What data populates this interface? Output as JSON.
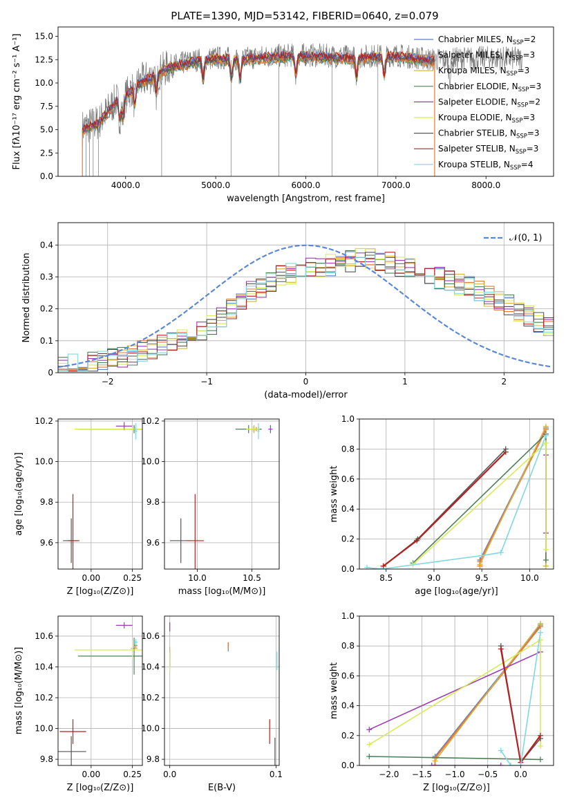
{
  "title": "PLATE=1390, MJD=53142, FIBERID=0640, z=0.079",
  "colors": {
    "cm": "#5b7fc8",
    "sm": "#e07a3c",
    "km": "#d4b040",
    "ce": "#4f7f5a",
    "se": "#9b3db0",
    "ke": "#d8ea58",
    "cs": "#555555",
    "ss": "#b22222",
    "ks": "#80d8e0",
    "gauss": "#5b88d6",
    "data": "#777777"
  },
  "models": [
    {
      "key": "cm",
      "label": "Chabrier MILES, N",
      "sub": "SSP",
      "n": "=2"
    },
    {
      "key": "sm",
      "label": "Salpeter MILES, N",
      "sub": "SSP",
      "n": "=3"
    },
    {
      "key": "km",
      "label": "Kroupa MILES, N",
      "sub": "SSP",
      "n": "=3"
    },
    {
      "key": "ce",
      "label": "Chabrier ELODIE, N",
      "sub": "SSP",
      "n": "=3"
    },
    {
      "key": "se",
      "label": "Salpeter ELODIE, N",
      "sub": "SSP",
      "n": "=2"
    },
    {
      "key": "ke",
      "label": "Kroupa ELODIE, N",
      "sub": "SSP",
      "n": "=3"
    },
    {
      "key": "cs",
      "label": "Chabrier STELIB, N",
      "sub": "SSP",
      "n": "=3"
    },
    {
      "key": "ss",
      "label": "Salpeter STELIB, N",
      "sub": "SSP",
      "n": "=3"
    },
    {
      "key": "ks",
      "label": "Kroupa STELIB, N",
      "sub": "SSP",
      "n": "=4"
    }
  ],
  "chart_data": [
    {
      "id": "spectrum",
      "type": "line",
      "xlabel": "wavelength [Angstrom, rest frame]",
      "ylabel": "Flux [fλ10⁻¹⁷ erg cm⁻² s⁻¹ A⁻¹]",
      "xlim": [
        3250,
        8750
      ],
      "ylim": [
        0,
        16
      ],
      "xticks": [
        4000,
        5000,
        6000,
        7000,
        8000
      ],
      "yticks": [
        0.0,
        2.5,
        5.0,
        7.5,
        10.0,
        12.5,
        15.0
      ],
      "continuum": [
        [
          3520,
          5.0
        ],
        [
          3700,
          5.6
        ],
        [
          3900,
          8.0
        ],
        [
          4000,
          8.4
        ],
        [
          4100,
          9.6
        ],
        [
          4300,
          10.6
        ],
        [
          4500,
          11.6
        ],
        [
          4800,
          12.3
        ],
        [
          5000,
          12.5
        ],
        [
          5300,
          12.4
        ],
        [
          5600,
          12.7
        ],
        [
          6000,
          12.8
        ],
        [
          6500,
          12.6
        ],
        [
          7000,
          12.8
        ],
        [
          7400,
          12.3
        ],
        [
          8000,
          12.5
        ],
        [
          8400,
          12.4
        ]
      ]
    },
    {
      "id": "residuals",
      "type": "line",
      "xlabel": "(data-model)/error",
      "ylabel": "Normed distribution",
      "xlim": [
        -2.5,
        2.5
      ],
      "ylim": [
        0,
        0.47
      ],
      "xticks": [
        -2,
        -1,
        0,
        1,
        2
      ],
      "yticks": [
        0.0,
        0.1,
        0.2,
        0.3,
        0.4
      ],
      "legend": "𝒩(0, 1)",
      "envelope": [
        [
          -2.5,
          0.02
        ],
        [
          -2.0,
          0.04
        ],
        [
          -1.5,
          0.08
        ],
        [
          -1.0,
          0.14
        ],
        [
          -0.6,
          0.25
        ],
        [
          -0.3,
          0.3
        ],
        [
          0.0,
          0.33
        ],
        [
          0.3,
          0.34
        ],
        [
          0.6,
          0.36
        ],
        [
          1.0,
          0.33
        ],
        [
          1.3,
          0.3
        ],
        [
          1.6,
          0.27
        ],
        [
          2.0,
          0.22
        ],
        [
          2.3,
          0.16
        ],
        [
          2.5,
          0.13
        ]
      ]
    },
    {
      "id": "age_vs_z",
      "type": "scatter",
      "xlabel": "Z [log₁₀(Z/Z⊙)]",
      "ylabel": "age  [log₁₀(age/yr)]",
      "xlim": [
        -0.2,
        0.31
      ],
      "ylim": [
        9.47,
        10.21
      ],
      "xticks": [
        0.0,
        0.25
      ],
      "yticks": [
        9.6,
        9.8,
        10.0,
        10.2
      ],
      "points": [
        {
          "s": "cm",
          "x": 0.27,
          "y": 10.16,
          "ex": 0.01,
          "ey": 0.01
        },
        {
          "s": "sm",
          "x": 0.27,
          "y": 10.16,
          "ex": 0.03,
          "ey": 0.01
        },
        {
          "s": "km",
          "x": 0.26,
          "y": 10.16,
          "ex": 0.02,
          "ey": 0.02
        },
        {
          "s": "ce",
          "x": 0.26,
          "y": 10.16,
          "ex": 0.34,
          "ey": 0.02
        },
        {
          "s": "se",
          "x": 0.2,
          "y": 10.175,
          "ex": 0.05,
          "ey": 0.02
        },
        {
          "s": "ke",
          "x": 0.25,
          "y": 10.16,
          "ex": 0.35,
          "ey": 0.015
        },
        {
          "s": "cs",
          "x": -0.12,
          "y": 9.61,
          "ex": 0.05,
          "ey": 0.11
        },
        {
          "s": "ss",
          "x": -0.11,
          "y": 9.61,
          "ex": 0.03,
          "ey": 0.23
        },
        {
          "s": "ks",
          "x": 0.27,
          "y": 10.15,
          "ex": 0.01,
          "ey": 0.04
        }
      ]
    },
    {
      "id": "age_vs_mass",
      "type": "scatter",
      "xlabel": "mass [log₁₀(M/M⊙)]",
      "ylabel": "",
      "xlim": [
        9.7,
        10.75
      ],
      "ylim": [
        9.47,
        10.21
      ],
      "xticks": [
        10.0,
        10.5
      ],
      "yticks": [
        9.6,
        9.8,
        10.0,
        10.2
      ],
      "points": [
        {
          "s": "cm",
          "x": 10.56,
          "y": 10.16,
          "ex": 0.02,
          "ey": 0.01
        },
        {
          "s": "sm",
          "x": 10.54,
          "y": 10.16,
          "ex": 0.02,
          "ey": 0.01
        },
        {
          "s": "km",
          "x": 10.52,
          "y": 10.16,
          "ex": 0.02,
          "ey": 0.02
        },
        {
          "s": "ce",
          "x": 10.47,
          "y": 10.16,
          "ex": 0.12,
          "ey": 0.02
        },
        {
          "s": "se",
          "x": 10.67,
          "y": 10.16,
          "ex": 0.02,
          "ey": 0.02
        },
        {
          "s": "ke",
          "x": 10.51,
          "y": 10.16,
          "ex": 0.06,
          "ey": 0.015
        },
        {
          "s": "cs",
          "x": 9.85,
          "y": 9.61,
          "ex": 0.1,
          "ey": 0.11
        },
        {
          "s": "ss",
          "x": 9.98,
          "y": 9.61,
          "ex": 0.08,
          "ey": 0.23
        },
        {
          "s": "ks",
          "x": 10.56,
          "y": 10.15,
          "ex": 0.01,
          "ey": 0.04
        }
      ]
    },
    {
      "id": "mass_vs_z",
      "type": "scatter",
      "xlabel": "Z [log₁₀(Z/Z⊙)]",
      "ylabel": "mass [log₁₀(M/M⊙)]",
      "xlim": [
        -0.2,
        0.31
      ],
      "ylim": [
        9.76,
        10.73
      ],
      "xticks": [
        0.0,
        0.25
      ],
      "yticks": [
        9.8,
        10.0,
        10.2,
        10.4,
        10.6
      ],
      "points": [
        {
          "s": "cm",
          "x": 0.27,
          "y": 10.56,
          "ex": 0.01,
          "ey": 0.02
        },
        {
          "s": "sm",
          "x": 0.27,
          "y": 10.54,
          "ex": 0.01,
          "ey": 0.02
        },
        {
          "s": "km",
          "x": 0.26,
          "y": 10.52,
          "ex": 0.02,
          "ey": 0.02
        },
        {
          "s": "ce",
          "x": 0.26,
          "y": 10.47,
          "ex": 0.34,
          "ey": 0.12
        },
        {
          "s": "se",
          "x": 0.2,
          "y": 10.67,
          "ex": 0.05,
          "ey": 0.02
        },
        {
          "s": "ke",
          "x": 0.25,
          "y": 10.51,
          "ex": 0.35,
          "ey": 0.06
        },
        {
          "s": "cs",
          "x": -0.12,
          "y": 9.85,
          "ex": 0.09,
          "ey": 0.1
        },
        {
          "s": "ss",
          "x": -0.11,
          "y": 9.98,
          "ex": 0.08,
          "ey": 0.08
        },
        {
          "s": "ks",
          "x": 0.27,
          "y": 10.56,
          "ex": 0.01,
          "ey": 0.02
        }
      ]
    },
    {
      "id": "mass_vs_ebv",
      "type": "scatter",
      "xlabel": "E(B-V)",
      "ylabel": "",
      "xlim": [
        -0.005,
        0.103
      ],
      "ylim": [
        9.76,
        10.73
      ],
      "xticks": [
        0.0,
        0.1
      ],
      "yticks": [
        9.8,
        10.0,
        10.2,
        10.4,
        10.6
      ],
      "points": [
        {
          "s": "cm",
          "x": 0.055,
          "y": 10.53,
          "ex": 0,
          "ey": 0.03
        },
        {
          "s": "sm",
          "x": 0.055,
          "y": 10.54,
          "ex": 0,
          "ey": 0.02
        },
        {
          "s": "km",
          "x": 0.0,
          "y": 10.5,
          "ex": 0,
          "ey": 0.03
        },
        {
          "s": "ce",
          "x": 0.0,
          "y": 10.45,
          "ex": 0,
          "ey": 0.05
        },
        {
          "s": "se",
          "x": 0.0,
          "y": 10.66,
          "ex": 0,
          "ey": 0.03
        },
        {
          "s": "ke",
          "x": 0.0,
          "y": 10.43,
          "ex": 0,
          "ey": 0.07
        },
        {
          "s": "cs",
          "x": 0.099,
          "y": 9.85,
          "ex": 0,
          "ey": 0.09
        },
        {
          "s": "ss",
          "x": 0.094,
          "y": 9.98,
          "ex": 0,
          "ey": 0.08
        },
        {
          "s": "ks",
          "x": 0.101,
          "y": 10.44,
          "ex": 0,
          "ey": 0.06
        }
      ]
    },
    {
      "id": "weight_vs_age",
      "type": "line",
      "xlabel": "age  [log₁₀(age/yr)]",
      "ylabel": "mass weight",
      "xlim": [
        8.22,
        10.25
      ],
      "ylim": [
        0,
        1
      ],
      "xticks": [
        8.5,
        9.0,
        9.5,
        10.0
      ],
      "yticks": [
        0.0,
        0.2,
        0.4,
        0.6,
        0.8,
        1.0
      ],
      "series": [
        {
          "s": "cm",
          "points": [
            [
              9.48,
              0.06
            ],
            [
              10.17,
              0.94
            ]
          ]
        },
        {
          "s": "sm",
          "points": [
            [
              9.48,
              0.02
            ],
            [
              9.48,
              0.05
            ],
            [
              10.17,
              0.93
            ]
          ]
        },
        {
          "s": "km",
          "points": [
            [
              9.48,
              0.03
            ],
            [
              10.17,
              0.95
            ],
            [
              10.17,
              0.02
            ]
          ]
        },
        {
          "s": "ce",
          "points": [
            [
              8.78,
              0.04
            ],
            [
              10.17,
              0.9
            ],
            [
              10.17,
              0.06
            ]
          ]
        },
        {
          "s": "se",
          "points": [
            [
              10.17,
              0.24
            ],
            [
              10.17,
              0.76
            ]
          ]
        },
        {
          "s": "ke",
          "points": [
            [
              8.78,
              0.03
            ],
            [
              10.17,
              0.84
            ],
            [
              10.17,
              0.13
            ]
          ]
        },
        {
          "s": "cs",
          "points": [
            [
              8.47,
              0.02
            ],
            [
              8.83,
              0.2
            ],
            [
              9.75,
              0.8
            ]
          ]
        },
        {
          "s": "ss",
          "points": [
            [
              8.47,
              0.02
            ],
            [
              8.82,
              0.19
            ],
            [
              9.75,
              0.78
            ]
          ]
        },
        {
          "s": "ks",
          "points": [
            [
              8.3,
              0.01
            ],
            [
              8.45,
              0.0
            ],
            [
              9.5,
              0.09
            ],
            [
              9.7,
              0.11
            ],
            [
              10.17,
              0.89
            ]
          ]
        }
      ]
    },
    {
      "id": "weight_vs_z",
      "type": "line",
      "xlabel": "Z [log₁₀(Z/Z⊙)]",
      "ylabel": "mass weight",
      "xlim": [
        -2.45,
        0.5
      ],
      "ylim": [
        0,
        1
      ],
      "xticks": [
        -2.0,
        -1.5,
        -1.0,
        -0.5,
        0.0
      ],
      "yticks": [
        0.0,
        0.2,
        0.4,
        0.6,
        0.8,
        1.0
      ],
      "series": [
        {
          "s": "cm",
          "points": [
            [
              -1.3,
              0.06
            ],
            [
              0.3,
              0.94
            ]
          ]
        },
        {
          "s": "sm",
          "points": [
            [
              -1.3,
              0.0
            ],
            [
              -1.3,
              0.05
            ],
            [
              0.3,
              0.93
            ]
          ]
        },
        {
          "s": "km",
          "points": [
            [
              -1.3,
              0.03
            ],
            [
              0.3,
              0.95
            ]
          ]
        },
        {
          "s": "ce",
          "points": [
            [
              -2.3,
              0.06
            ],
            [
              0.3,
              0.04
            ]
          ]
        },
        {
          "s": "se",
          "points": [
            [
              -2.3,
              0.24
            ],
            [
              0.3,
              0.76
            ]
          ]
        },
        {
          "s": "ke",
          "points": [
            [
              -2.3,
              0.14
            ],
            [
              0.3,
              0.84
            ],
            [
              0.3,
              0.13
            ]
          ]
        },
        {
          "s": "cs",
          "points": [
            [
              -0.3,
              0.8
            ],
            [
              0.0,
              0.02
            ],
            [
              0.3,
              0.18
            ]
          ]
        },
        {
          "s": "ss",
          "points": [
            [
              -0.3,
              0.78
            ],
            [
              0.0,
              0.02
            ],
            [
              0.3,
              0.2
            ]
          ]
        },
        {
          "s": "ks",
          "points": [
            [
              -0.3,
              0.1
            ],
            [
              -0.15,
              0.0
            ],
            [
              0.0,
              0.0
            ],
            [
              0.3,
              0.89
            ]
          ]
        },
        {
          "s": "se",
          "points": [
            [
              -1.35,
              0.0
            ],
            [
              -0.3,
              0.0
            ]
          ]
        }
      ]
    }
  ]
}
